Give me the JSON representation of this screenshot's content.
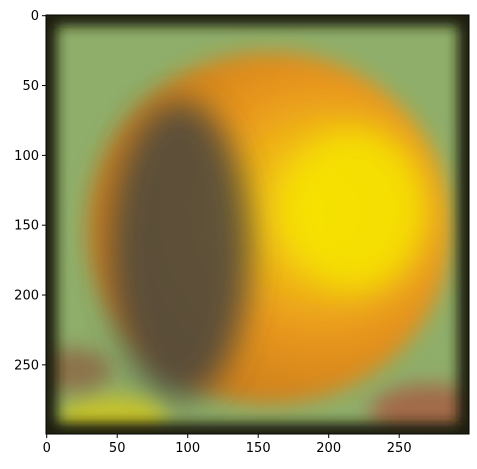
{
  "chart_data": {
    "type": "heatmap",
    "title": "",
    "xlabel": "",
    "ylabel": "",
    "image_size": [
      300,
      300
    ],
    "xlim": [
      -0.5,
      299.5
    ],
    "ylim": [
      299.5,
      -0.5
    ],
    "xticks": [
      0,
      50,
      100,
      150,
      200,
      250
    ],
    "yticks": [
      0,
      50,
      100,
      150,
      200,
      250
    ],
    "xtick_labels": [
      "0",
      "50",
      "100",
      "150",
      "200",
      "250"
    ],
    "ytick_labels": [
      "0",
      "50",
      "100",
      "150",
      "200",
      "250"
    ],
    "grid": false,
    "legend": "none",
    "content": "blurred photo of an orange fruit against a green background",
    "colors": {
      "background_green": "#8fae6a",
      "fruit_orange": "#e8961c",
      "highlight_yellow": "#f6e200",
      "shadow_dark": "#46443c",
      "bottom_left_yellow": "#c6c22a",
      "bottom_right_brick": "#a26a48",
      "frame_edge": "#1c1c10"
    }
  }
}
